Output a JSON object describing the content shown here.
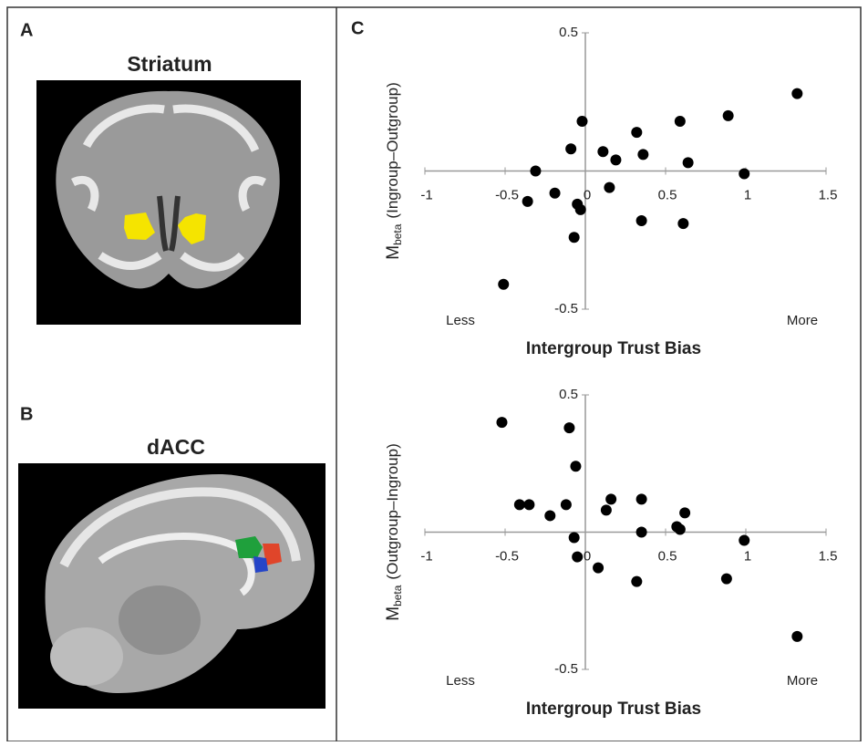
{
  "panels": [
    {
      "label": "A",
      "title": "Striatum"
    },
    {
      "label": "B",
      "title": "dACC"
    },
    {
      "label": "C"
    }
  ],
  "chart_data": [
    {
      "type": "scatter",
      "color": "#000000",
      "y_label": {
        "main": "M",
        "sub": "beta",
        "rest": "(Ingroup–Outgroup)"
      },
      "x_label": "Intergroup Trust Bias",
      "annotations": {
        "left": "Less",
        "right": "More"
      },
      "xlim": [
        -1,
        1.5
      ],
      "xticks": [
        -1,
        -0.5,
        0,
        0.5,
        1,
        1.5
      ],
      "ylim": [
        -0.5,
        0.5
      ],
      "yticks": [
        -0.5,
        0.5
      ],
      "x": [
        -0.51,
        -0.36,
        -0.31,
        -0.19,
        -0.09,
        -0.07,
        -0.05,
        -0.03,
        -0.02,
        0.11,
        0.15,
        0.19,
        0.32,
        0.35,
        0.36,
        0.59,
        0.61,
        0.64,
        0.89,
        0.99,
        1.32
      ],
      "values": [
        -0.41,
        -0.11,
        0.0,
        -0.08,
        0.08,
        -0.24,
        -0.12,
        -0.14,
        0.18,
        0.07,
        -0.06,
        0.04,
        0.14,
        -0.18,
        0.06,
        0.18,
        -0.19,
        0.03,
        0.2,
        -0.01,
        0.28
      ]
    },
    {
      "type": "scatter",
      "color": "#000000",
      "y_label": {
        "main": "M",
        "sub": "beta",
        "rest": "(Outgroup–Ingroup)"
      },
      "x_label": "Intergroup Trust Bias",
      "annotations": {
        "left": "Less",
        "right": "More"
      },
      "xlim": [
        -1,
        1.5
      ],
      "xticks": [
        -1,
        -0.5,
        0,
        0.5,
        1,
        1.5
      ],
      "ylim": [
        -0.5,
        0.5
      ],
      "yticks": [
        -0.5,
        0.5
      ],
      "x": [
        -0.52,
        -0.41,
        -0.35,
        -0.22,
        -0.12,
        -0.1,
        -0.06,
        -0.07,
        -0.05,
        0.13,
        0.16,
        0.08,
        0.32,
        0.35,
        0.35,
        0.57,
        0.59,
        0.62,
        0.88,
        0.99,
        1.32
      ],
      "values": [
        0.4,
        0.1,
        0.1,
        0.06,
        0.1,
        0.38,
        0.24,
        -0.02,
        -0.09,
        0.08,
        0.12,
        -0.13,
        -0.18,
        0.12,
        0.0,
        0.02,
        0.01,
        0.07,
        -0.17,
        -0.03,
        -0.38
      ]
    }
  ]
}
